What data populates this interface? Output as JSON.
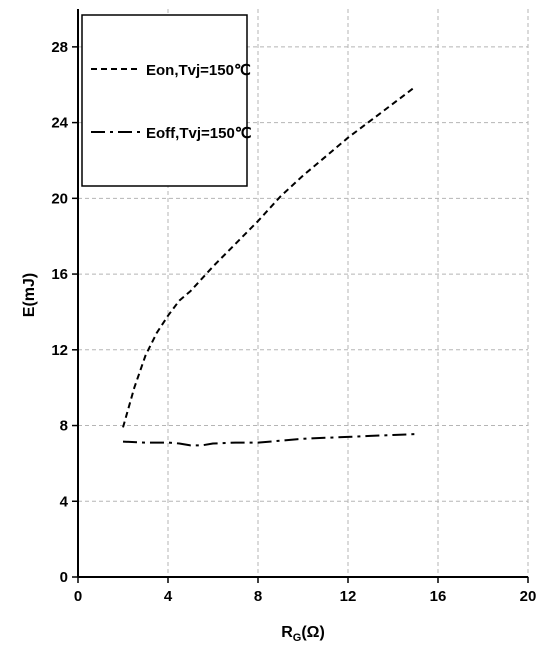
{
  "chart_data": {
    "type": "line",
    "title": "",
    "xlabel_main": "R",
    "xlabel_sub": "G",
    "xlabel_unit": "(Ω)",
    "ylabel": "E(mJ)",
    "xlim": [
      0,
      20
    ],
    "ylim": [
      0,
      30
    ],
    "xticks": [
      0,
      4,
      8,
      12,
      16,
      20
    ],
    "yticks": [
      0,
      4,
      8,
      12,
      16,
      20,
      24,
      28
    ],
    "grid": true,
    "legend_position": "top-left",
    "series": [
      {
        "name": "Eon,Tvj=150℃",
        "style": "dashed",
        "color": "#000000",
        "points": [
          [
            2.0,
            7.9
          ],
          [
            2.5,
            10.0
          ],
          [
            3.0,
            11.7
          ],
          [
            3.5,
            12.9
          ],
          [
            4.0,
            13.8
          ],
          [
            4.5,
            14.6
          ],
          [
            5.0,
            15.1
          ],
          [
            6.0,
            16.4
          ],
          [
            7.0,
            17.6
          ],
          [
            8.0,
            18.8
          ],
          [
            9.0,
            20.1
          ],
          [
            10.0,
            21.2
          ],
          [
            11.0,
            22.2
          ],
          [
            12.0,
            23.2
          ],
          [
            13.0,
            24.1
          ],
          [
            14.0,
            25.0
          ],
          [
            15.0,
            25.9
          ]
        ]
      },
      {
        "name": "Eoff,Tvj=150℃",
        "style": "dash-dot",
        "color": "#000000",
        "points": [
          [
            2.0,
            7.15
          ],
          [
            3.0,
            7.1
          ],
          [
            4.0,
            7.1
          ],
          [
            4.5,
            7.05
          ],
          [
            5.0,
            6.95
          ],
          [
            5.5,
            6.95
          ],
          [
            6.0,
            7.05
          ],
          [
            7.0,
            7.1
          ],
          [
            8.0,
            7.1
          ],
          [
            9.0,
            7.2
          ],
          [
            10.0,
            7.3
          ],
          [
            11.0,
            7.35
          ],
          [
            12.0,
            7.4
          ],
          [
            13.0,
            7.45
          ],
          [
            14.0,
            7.5
          ],
          [
            15.0,
            7.55
          ]
        ]
      }
    ]
  }
}
